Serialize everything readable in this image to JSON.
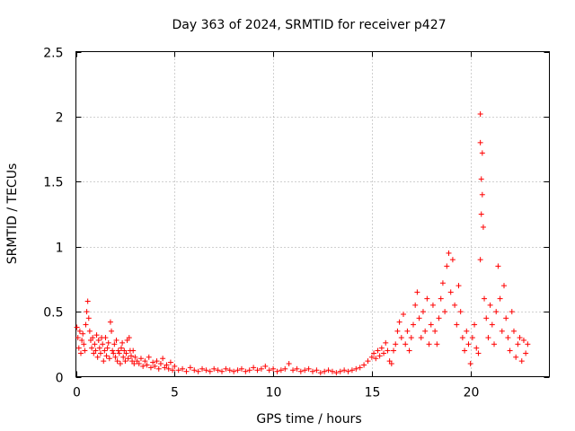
{
  "chart_data": {
    "type": "scatter",
    "title": "Day 363 of 2024, SRMTID for receiver p427",
    "xlabel": "GPS time / hours",
    "ylabel": "SRMTID / TECUs",
    "xlim": [
      0,
      24
    ],
    "ylim": [
      0,
      2.5
    ],
    "grid": true,
    "marker": "plus",
    "color": "#ff0000",
    "x_ticks": [
      {
        "value": 0,
        "label": "0"
      },
      {
        "value": 5,
        "label": "5"
      },
      {
        "value": 10,
        "label": "10"
      },
      {
        "value": 15,
        "label": "15"
      },
      {
        "value": 20,
        "label": "20"
      }
    ],
    "y_ticks": [
      {
        "value": 0,
        "label": "0"
      },
      {
        "value": 0.5,
        "label": "0.5"
      },
      {
        "value": 1,
        "label": "1"
      },
      {
        "value": 1.5,
        "label": "1.5"
      },
      {
        "value": 2,
        "label": "2"
      },
      {
        "value": 2.5,
        "label": "2.5"
      }
    ],
    "series": [
      {
        "name": "SRMTID",
        "points": [
          [
            0.05,
            0.38
          ],
          [
            0.1,
            0.3
          ],
          [
            0.15,
            0.22
          ],
          [
            0.2,
            0.35
          ],
          [
            0.25,
            0.18
          ],
          [
            0.3,
            0.28
          ],
          [
            0.35,
            0.33
          ],
          [
            0.4,
            0.25
          ],
          [
            0.45,
            0.2
          ],
          [
            0.5,
            0.4
          ],
          [
            0.55,
            0.5
          ],
          [
            0.6,
            0.58
          ],
          [
            0.65,
            0.45
          ],
          [
            0.7,
            0.35
          ],
          [
            0.75,
            0.28
          ],
          [
            0.8,
            0.22
          ],
          [
            0.85,
            0.3
          ],
          [
            0.9,
            0.18
          ],
          [
            0.95,
            0.25
          ],
          [
            1.0,
            0.2
          ],
          [
            1.05,
            0.32
          ],
          [
            1.1,
            0.15
          ],
          [
            1.15,
            0.28
          ],
          [
            1.2,
            0.22
          ],
          [
            1.25,
            0.18
          ],
          [
            1.3,
            0.3
          ],
          [
            1.35,
            0.25
          ],
          [
            1.4,
            0.12
          ],
          [
            1.45,
            0.2
          ],
          [
            1.5,
            0.3
          ],
          [
            1.55,
            0.16
          ],
          [
            1.6,
            0.22
          ],
          [
            1.65,
            0.26
          ],
          [
            1.7,
            0.14
          ],
          [
            1.75,
            0.42
          ],
          [
            1.8,
            0.35
          ],
          [
            1.85,
            0.2
          ],
          [
            1.9,
            0.18
          ],
          [
            1.95,
            0.25
          ],
          [
            2.0,
            0.15
          ],
          [
            2.05,
            0.28
          ],
          [
            2.1,
            0.12
          ],
          [
            2.15,
            0.2
          ],
          [
            2.2,
            0.18
          ],
          [
            2.25,
            0.1
          ],
          [
            2.3,
            0.22
          ],
          [
            2.35,
            0.26
          ],
          [
            2.4,
            0.15
          ],
          [
            2.45,
            0.2
          ],
          [
            2.5,
            0.12
          ],
          [
            2.55,
            0.18
          ],
          [
            2.6,
            0.28
          ],
          [
            2.65,
            0.14
          ],
          [
            2.7,
            0.3
          ],
          [
            2.75,
            0.2
          ],
          [
            2.8,
            0.16
          ],
          [
            2.85,
            0.12
          ],
          [
            2.9,
            0.2
          ],
          [
            2.95,
            0.1
          ],
          [
            3.0,
            0.15
          ],
          [
            3.1,
            0.12
          ],
          [
            3.2,
            0.1
          ],
          [
            3.3,
            0.14
          ],
          [
            3.4,
            0.08
          ],
          [
            3.5,
            0.12
          ],
          [
            3.6,
            0.09
          ],
          [
            3.7,
            0.15
          ],
          [
            3.8,
            0.07
          ],
          [
            3.9,
            0.11
          ],
          [
            4.0,
            0.08
          ],
          [
            4.1,
            0.12
          ],
          [
            4.2,
            0.06
          ],
          [
            4.3,
            0.1
          ],
          [
            4.4,
            0.14
          ],
          [
            4.5,
            0.07
          ],
          [
            4.6,
            0.09
          ],
          [
            4.7,
            0.06
          ],
          [
            4.8,
            0.11
          ],
          [
            4.9,
            0.05
          ],
          [
            5.0,
            0.08
          ],
          [
            5.2,
            0.05
          ],
          [
            5.4,
            0.06
          ],
          [
            5.6,
            0.04
          ],
          [
            5.8,
            0.07
          ],
          [
            6.0,
            0.05
          ],
          [
            6.2,
            0.04
          ],
          [
            6.4,
            0.06
          ],
          [
            6.6,
            0.05
          ],
          [
            6.8,
            0.04
          ],
          [
            7.0,
            0.06
          ],
          [
            7.2,
            0.05
          ],
          [
            7.4,
            0.04
          ],
          [
            7.6,
            0.06
          ],
          [
            7.8,
            0.05
          ],
          [
            8.0,
            0.04
          ],
          [
            8.2,
            0.05
          ],
          [
            8.4,
            0.06
          ],
          [
            8.6,
            0.04
          ],
          [
            8.8,
            0.05
          ],
          [
            9.0,
            0.07
          ],
          [
            9.2,
            0.05
          ],
          [
            9.4,
            0.06
          ],
          [
            9.6,
            0.08
          ],
          [
            9.8,
            0.05
          ],
          [
            10.0,
            0.06
          ],
          [
            10.2,
            0.04
          ],
          [
            10.4,
            0.05
          ],
          [
            10.6,
            0.06
          ],
          [
            10.8,
            0.1
          ],
          [
            11.0,
            0.05
          ],
          [
            11.2,
            0.06
          ],
          [
            11.4,
            0.04
          ],
          [
            11.6,
            0.05
          ],
          [
            11.8,
            0.06
          ],
          [
            12.0,
            0.04
          ],
          [
            12.2,
            0.05
          ],
          [
            12.4,
            0.03
          ],
          [
            12.6,
            0.04
          ],
          [
            12.8,
            0.05
          ],
          [
            13.0,
            0.04
          ],
          [
            13.2,
            0.03
          ],
          [
            13.4,
            0.04
          ],
          [
            13.6,
            0.05
          ],
          [
            13.8,
            0.04
          ],
          [
            14.0,
            0.05
          ],
          [
            14.2,
            0.06
          ],
          [
            14.4,
            0.07
          ],
          [
            14.6,
            0.09
          ],
          [
            14.8,
            0.12
          ],
          [
            15.0,
            0.15
          ],
          [
            15.1,
            0.18
          ],
          [
            15.2,
            0.14
          ],
          [
            15.3,
            0.2
          ],
          [
            15.4,
            0.16
          ],
          [
            15.5,
            0.22
          ],
          [
            15.6,
            0.18
          ],
          [
            15.7,
            0.26
          ],
          [
            15.8,
            0.2
          ],
          [
            15.9,
            0.12
          ],
          [
            16.0,
            0.1
          ],
          [
            16.1,
            0.2
          ],
          [
            16.2,
            0.25
          ],
          [
            16.3,
            0.35
          ],
          [
            16.4,
            0.42
          ],
          [
            16.5,
            0.3
          ],
          [
            16.6,
            0.48
          ],
          [
            16.7,
            0.25
          ],
          [
            16.8,
            0.35
          ],
          [
            16.9,
            0.2
          ],
          [
            17.0,
            0.3
          ],
          [
            17.1,
            0.4
          ],
          [
            17.2,
            0.55
          ],
          [
            17.3,
            0.65
          ],
          [
            17.4,
            0.45
          ],
          [
            17.5,
            0.3
          ],
          [
            17.6,
            0.5
          ],
          [
            17.7,
            0.35
          ],
          [
            17.8,
            0.6
          ],
          [
            17.9,
            0.25
          ],
          [
            18.0,
            0.4
          ],
          [
            18.1,
            0.55
          ],
          [
            18.2,
            0.35
          ],
          [
            18.3,
            0.25
          ],
          [
            18.4,
            0.45
          ],
          [
            18.5,
            0.6
          ],
          [
            18.6,
            0.72
          ],
          [
            18.7,
            0.5
          ],
          [
            18.8,
            0.85
          ],
          [
            18.9,
            0.95
          ],
          [
            19.0,
            0.65
          ],
          [
            19.1,
            0.9
          ],
          [
            19.2,
            0.55
          ],
          [
            19.3,
            0.4
          ],
          [
            19.4,
            0.7
          ],
          [
            19.5,
            0.5
          ],
          [
            19.6,
            0.3
          ],
          [
            19.7,
            0.2
          ],
          [
            19.8,
            0.35
          ],
          [
            19.9,
            0.25
          ],
          [
            20.0,
            0.1
          ],
          [
            20.1,
            0.3
          ],
          [
            20.2,
            0.4
          ],
          [
            20.3,
            0.22
          ],
          [
            20.4,
            0.18
          ],
          [
            20.5,
            2.02
          ],
          [
            20.5,
            1.8
          ],
          [
            20.55,
            1.52
          ],
          [
            20.55,
            1.25
          ],
          [
            20.6,
            1.72
          ],
          [
            20.6,
            1.4
          ],
          [
            20.65,
            1.15
          ],
          [
            20.5,
            0.9
          ],
          [
            20.7,
            0.6
          ],
          [
            20.8,
            0.45
          ],
          [
            20.9,
            0.3
          ],
          [
            21.0,
            0.55
          ],
          [
            21.1,
            0.4
          ],
          [
            21.2,
            0.25
          ],
          [
            21.3,
            0.5
          ],
          [
            21.4,
            0.85
          ],
          [
            21.5,
            0.6
          ],
          [
            21.6,
            0.35
          ],
          [
            21.7,
            0.7
          ],
          [
            21.8,
            0.45
          ],
          [
            21.9,
            0.3
          ],
          [
            22.0,
            0.2
          ],
          [
            22.1,
            0.5
          ],
          [
            22.2,
            0.35
          ],
          [
            22.3,
            0.15
          ],
          [
            22.4,
            0.25
          ],
          [
            22.5,
            0.3
          ],
          [
            22.6,
            0.12
          ],
          [
            22.7,
            0.28
          ],
          [
            22.8,
            0.18
          ],
          [
            22.9,
            0.25
          ]
        ]
      }
    ]
  }
}
